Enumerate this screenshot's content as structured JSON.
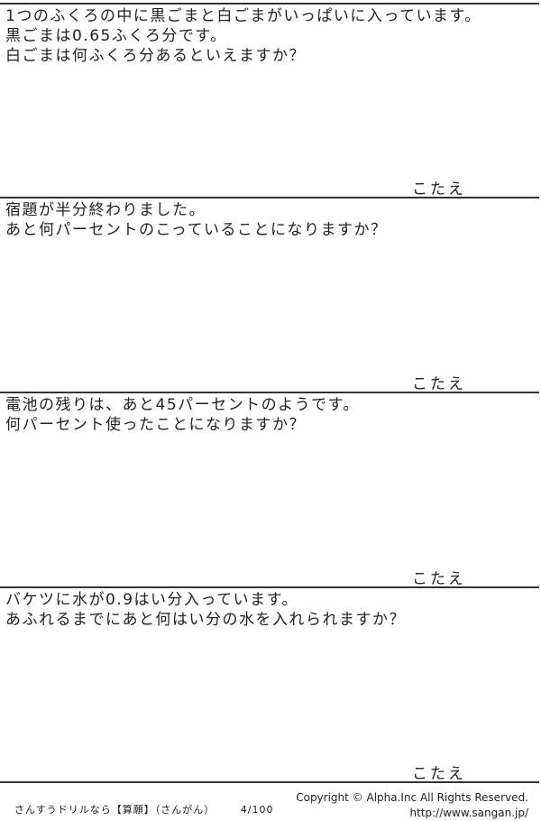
{
  "questions": [
    {
      "lines": [
        "1つのふくろの中に黒ごまと白ごまがいっぱいに入っています。",
        "黒ごまは0.65ふくろ分です。",
        "白ごまは何ふくろ分あるといえますか？"
      ],
      "answer_label": "こたえ"
    },
    {
      "lines": [
        "宿題が半分終わりました。",
        "あと何パーセントのこっていることになりますか？"
      ],
      "answer_label": "こたえ"
    },
    {
      "lines": [
        "電池の残りは、あと45パーセントのようです。",
        "何パーセント使ったことになりますか？"
      ],
      "answer_label": "こたえ"
    },
    {
      "lines": [
        "バケツに水が0.9はい分入っています。",
        "あふれるまでにあと何はい分の水を入れられますか？"
      ],
      "answer_label": "こたえ"
    }
  ],
  "footer": {
    "title": "さんすうドリルなら【算願】（さんがん）",
    "page": "4/100",
    "copyright": "Copyright ©  Alpha.Inc All Rights Reserved.",
    "url": "http://www.sangan.jp/"
  }
}
